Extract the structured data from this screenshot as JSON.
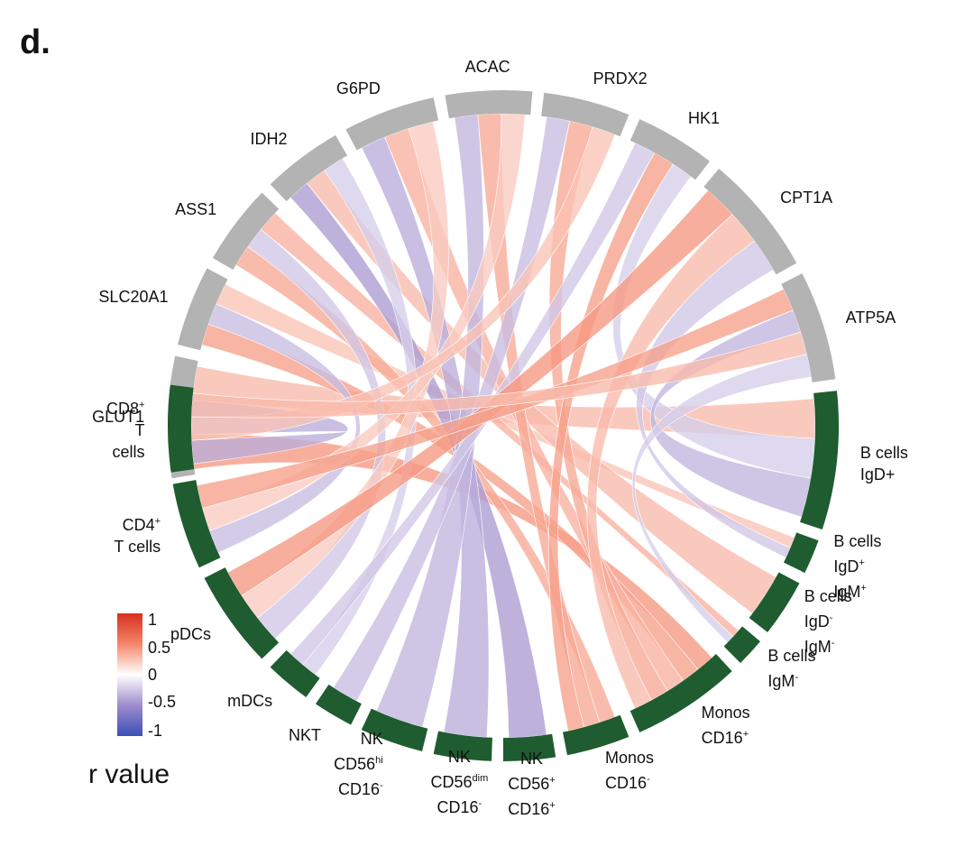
{
  "panel_label": "d.",
  "legend": {
    "title": "r value",
    "ticks": [
      "1",
      "0.5",
      "0",
      "-0.5",
      "-1"
    ],
    "colors": {
      "high": "#d7301f",
      "mid": "#ffffff",
      "low": "#3a4fb5"
    }
  },
  "colors": {
    "gene_segment": "#b3b3b3",
    "cell_segment": "#1f5c30",
    "positive_chord": "#f4866b",
    "negative_chord": "#9e8ccc"
  },
  "genes": [
    {
      "id": "g0",
      "name": "ATP5A"
    },
    {
      "id": "g1",
      "name": "CPT1A"
    },
    {
      "id": "g2",
      "name": "HK1"
    },
    {
      "id": "g3",
      "name": "PRDX2"
    },
    {
      "id": "g4",
      "name": "ACAC"
    },
    {
      "id": "g5",
      "name": "G6PD"
    },
    {
      "id": "g6",
      "name": "IDH2"
    },
    {
      "id": "g7",
      "name": "ASS1"
    },
    {
      "id": "g8",
      "name": "SLC20A1"
    },
    {
      "id": "g9",
      "name": "GLUT1"
    }
  ],
  "cells": [
    {
      "id": "c0",
      "name": "CD8+ T cells",
      "lines": [
        [
          "CD8",
          "+"
        ],
        [
          "T",
          ""
        ],
        [
          "cells",
          ""
        ]
      ]
    },
    {
      "id": "c1",
      "name": "CD4+ T cells",
      "lines": [
        [
          "CD4",
          "+"
        ],
        [
          "T cells",
          ""
        ]
      ]
    },
    {
      "id": "c2",
      "name": "pDCs",
      "lines": [
        [
          "pDCs",
          ""
        ]
      ]
    },
    {
      "id": "c3",
      "name": "mDCs",
      "lines": [
        [
          "mDCs",
          ""
        ]
      ]
    },
    {
      "id": "c4",
      "name": "NKT",
      "lines": [
        [
          "NKT",
          ""
        ]
      ]
    },
    {
      "id": "c5",
      "name": "NK CD56hi CD16-",
      "lines": [
        [
          "NK",
          ""
        ],
        [
          "CD56",
          "hi"
        ],
        [
          "CD16",
          "-"
        ]
      ]
    },
    {
      "id": "c6",
      "name": "NK CD56dim CD16-",
      "lines": [
        [
          "NK",
          ""
        ],
        [
          "CD56",
          "dim"
        ],
        [
          "CD16",
          "-"
        ]
      ]
    },
    {
      "id": "c7",
      "name": "NK CD56+ CD16+",
      "lines": [
        [
          "NK",
          ""
        ],
        [
          "CD56",
          "+"
        ],
        [
          "CD16",
          "+"
        ]
      ]
    },
    {
      "id": "c8",
      "name": "Monos CD16-",
      "lines": [
        [
          "Monos",
          ""
        ],
        [
          "CD16",
          "-"
        ]
      ]
    },
    {
      "id": "c9",
      "name": "Monos CD16+",
      "lines": [
        [
          "Monos",
          ""
        ],
        [
          "CD16",
          "+"
        ]
      ]
    },
    {
      "id": "c10",
      "name": "B cells IgM-",
      "lines": [
        [
          "B cells",
          ""
        ],
        [
          "IgM",
          "-"
        ]
      ]
    },
    {
      "id": "c11",
      "name": "B cells IgD- IgM-",
      "lines": [
        [
          "B cells",
          ""
        ],
        [
          "IgD",
          "-"
        ],
        [
          " IgM",
          "-"
        ]
      ]
    },
    {
      "id": "c12",
      "name": "B cells IgD+IgM+",
      "lines": [
        [
          "B cells",
          ""
        ],
        [
          "IgD",
          "+"
        ],
        [
          "IgM",
          "+"
        ]
      ]
    },
    {
      "id": "c13",
      "name": "B cells IgD+",
      "lines": [
        [
          "B cells",
          ""
        ],
        [
          "IgD+",
          ""
        ]
      ]
    }
  ],
  "correlations": [
    {
      "gene": "g9",
      "cell": "c9",
      "r": 0.6
    },
    {
      "gene": "g9",
      "cell": "c0",
      "r": -0.5
    },
    {
      "gene": "g9",
      "cell": "c13",
      "r": 0.4
    },
    {
      "gene": "g8",
      "cell": "c9",
      "r": 0.55
    },
    {
      "gene": "g8",
      "cell": "c1",
      "r": -0.4
    },
    {
      "gene": "g8",
      "cell": "c12",
      "r": 0.35
    },
    {
      "gene": "g7",
      "cell": "c8",
      "r": 0.5
    },
    {
      "gene": "g7",
      "cell": "c2",
      "r": -0.35
    },
    {
      "gene": "g7",
      "cell": "c10",
      "r": 0.45
    },
    {
      "gene": "g6",
      "cell": "c7",
      "r": -0.6
    },
    {
      "gene": "g6",
      "cell": "c11",
      "r": 0.4
    },
    {
      "gene": "g6",
      "cell": "c3",
      "r": -0.3
    },
    {
      "gene": "g5",
      "cell": "c6",
      "r": -0.5
    },
    {
      "gene": "g5",
      "cell": "c9",
      "r": 0.45
    },
    {
      "gene": "g5",
      "cell": "c2",
      "r": 0.3
    },
    {
      "gene": "g4",
      "cell": "c5",
      "r": -0.45
    },
    {
      "gene": "g4",
      "cell": "c8",
      "r": 0.5
    },
    {
      "gene": "g4",
      "cell": "c1",
      "r": 0.3
    },
    {
      "gene": "g3",
      "cell": "c4",
      "r": -0.4
    },
    {
      "gene": "g3",
      "cell": "c9",
      "r": 0.5
    },
    {
      "gene": "g3",
      "cell": "c0",
      "r": 0.35
    },
    {
      "gene": "g2",
      "cell": "c3",
      "r": -0.35
    },
    {
      "gene": "g2",
      "cell": "c8",
      "r": 0.55
    },
    {
      "gene": "g2",
      "cell": "c13",
      "r": -0.3
    },
    {
      "gene": "g1",
      "cell": "c2",
      "r": 0.6
    },
    {
      "gene": "g1",
      "cell": "c9",
      "r": 0.4
    },
    {
      "gene": "g1",
      "cell": "c12",
      "r": -0.35
    },
    {
      "gene": "g0",
      "cell": "c1",
      "r": 0.55
    },
    {
      "gene": "g0",
      "cell": "c13",
      "r": -0.45
    },
    {
      "gene": "g0",
      "cell": "c0",
      "r": 0.4
    },
    {
      "gene": "g0",
      "cell": "c10",
      "r": -0.3
    }
  ]
}
